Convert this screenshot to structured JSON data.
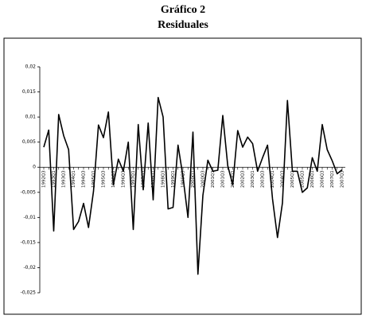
{
  "chart_data": {
    "type": "line",
    "title": "Gráfico 2",
    "subtitle": "Residuales",
    "categories": [
      "1992Q3",
      null,
      "1993Q1",
      null,
      "1993Q3",
      null,
      "1994Q1",
      null,
      "1994Q3",
      null,
      "1995Q1",
      null,
      "1995Q3",
      null,
      "1996Q1",
      null,
      "1996Q3",
      null,
      "1997Q1",
      null,
      "1997Q3",
      null,
      "1998Q1",
      null,
      "1998Q3",
      null,
      "1999Q1",
      null,
      "1999Q3",
      null,
      "2000Q1",
      null,
      "2000Q3",
      null,
      "2001Q1",
      null,
      "2001Q3",
      null,
      "2002Q1",
      null,
      "2002Q3",
      null,
      "2003Q1",
      null,
      "2003Q3",
      null,
      "2004Q1",
      null,
      "2004Q3",
      null,
      "2005Q1",
      null,
      "2005Q3",
      null,
      "2006Q1",
      null,
      "2006Q3",
      null,
      "2007Q1",
      null,
      "2007Q3"
    ],
    "series": [
      {
        "name": "Residuales",
        "color": "#000000",
        "values": [
          0.004,
          0.0074,
          -0.0127,
          0.0105,
          0.0063,
          0.0035,
          -0.0124,
          -0.0108,
          -0.0072,
          -0.012,
          -0.0048,
          0.0084,
          0.0059,
          0.011,
          -0.0035,
          0.0016,
          -0.0008,
          0.005,
          -0.0124,
          0.0085,
          -0.0045,
          0.0088,
          -0.0065,
          0.0139,
          0.01,
          -0.0083,
          -0.008,
          0.0044,
          -0.0019,
          -0.01,
          0.007,
          -0.0213,
          -0.0056,
          0.0014,
          -0.0008,
          -0.0006,
          0.0103,
          0.0003,
          -0.0035,
          0.0073,
          0.004,
          0.006,
          0.0047,
          -0.0008,
          0.0019,
          0.0044,
          -0.0063,
          -0.014,
          -0.0071,
          0.0133,
          -0.0008,
          -0.0008,
          -0.005,
          -0.0041,
          0.0019,
          -0.0008,
          0.0085,
          0.0035,
          0.0013,
          -0.0013,
          -0.0005
        ]
      }
    ],
    "ylim": [
      -0.025,
      0.02
    ],
    "yticks": [
      {
        "value": 0.02,
        "label": "0,02"
      },
      {
        "value": 0.015,
        "label": "0,015"
      },
      {
        "value": 0.01,
        "label": "0,01"
      },
      {
        "value": 0.005,
        "label": "0,005"
      },
      0,
      {
        "value": -0.005,
        "label": "-0,005"
      },
      {
        "value": -0.01,
        "label": "-0,01"
      },
      {
        "value": -0.015,
        "label": "-0,015"
      },
      {
        "value": -0.02,
        "label": "-0,02"
      },
      {
        "value": -0.025,
        "label": "-0,025"
      }
    ]
  }
}
